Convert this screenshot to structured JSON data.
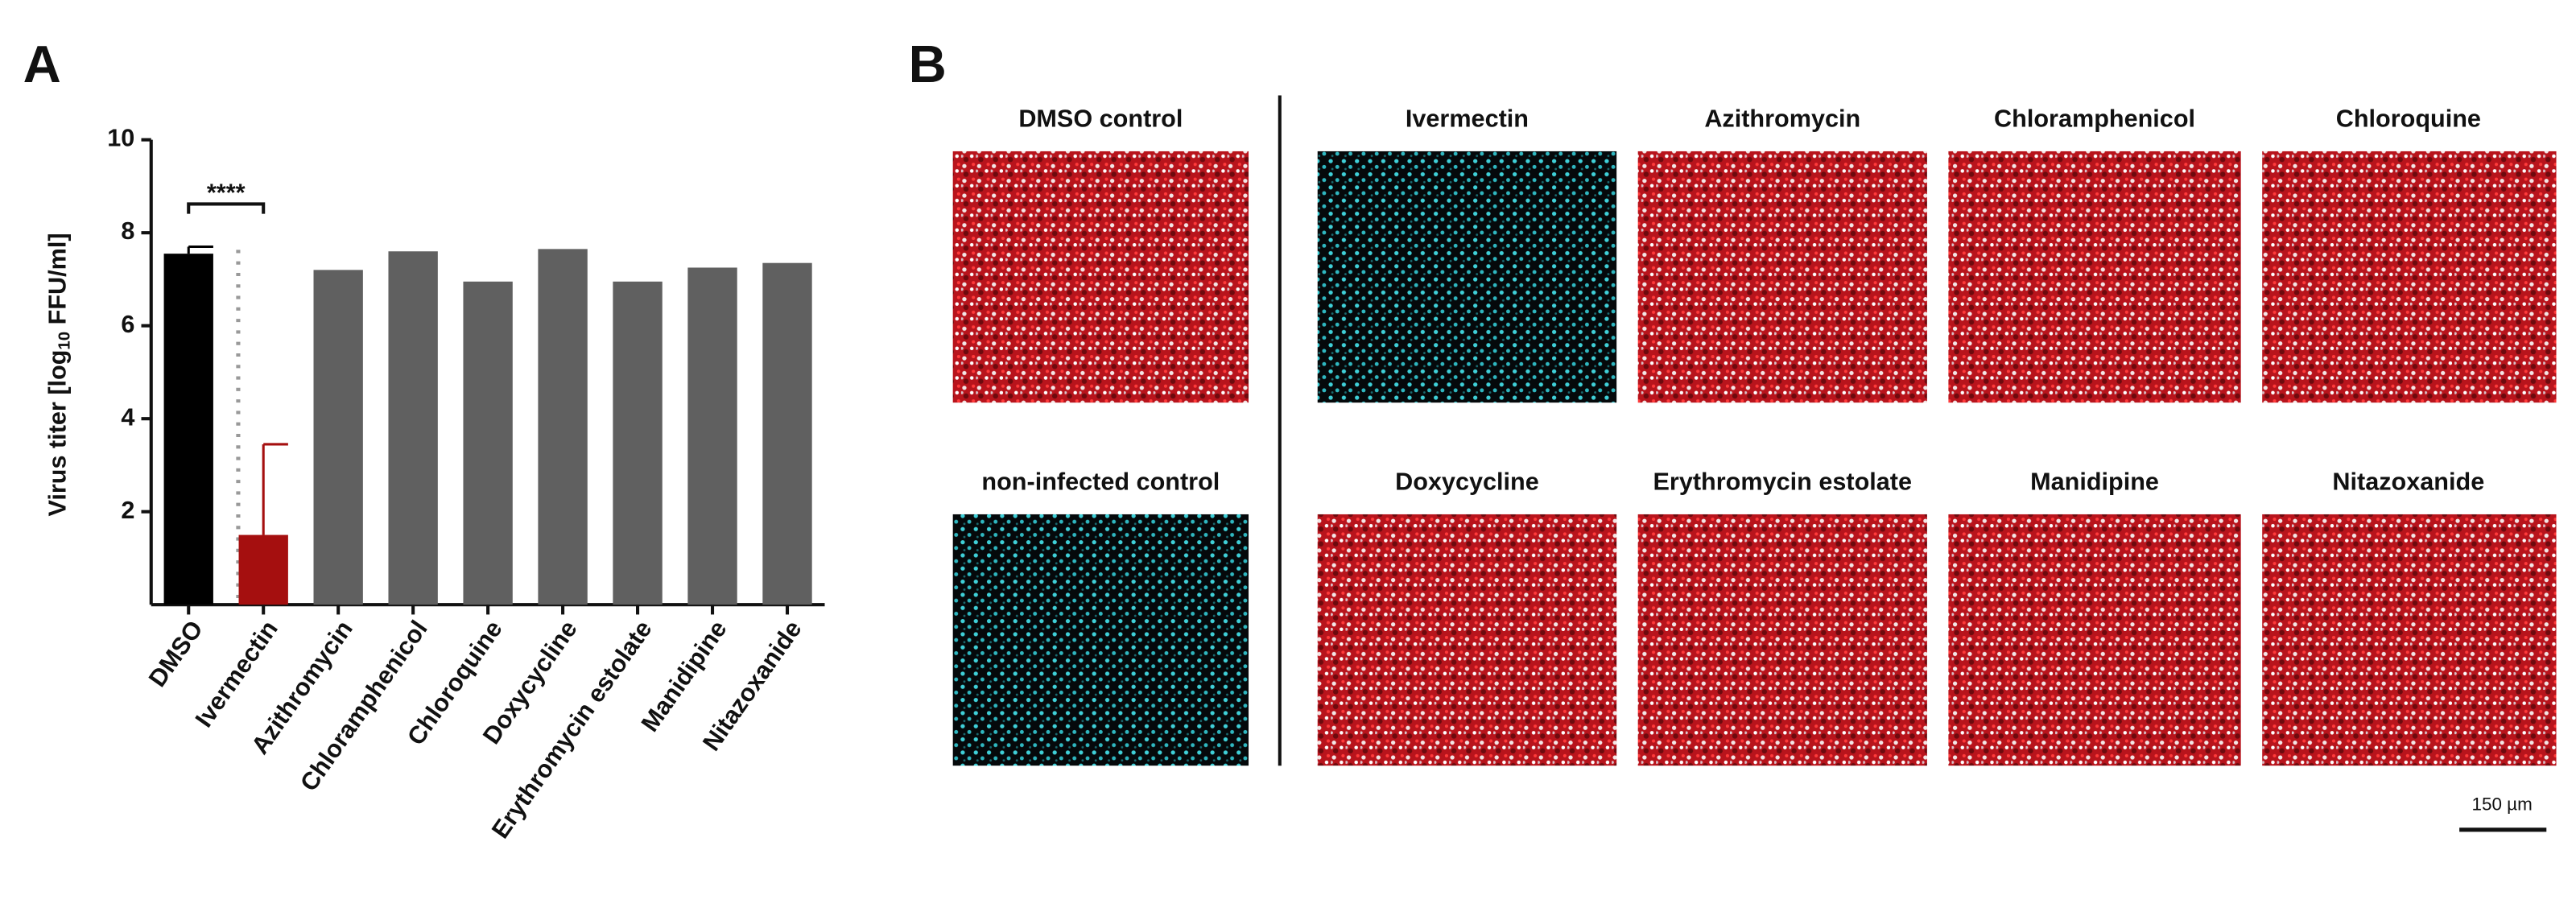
{
  "chart_data": {
    "type": "bar",
    "panel_label": "A",
    "ylabel_parts": [
      "Virus titer [log",
      "10",
      " FFU/ml]"
    ],
    "categories": [
      "DMSO",
      "Ivermectin",
      "Azithromycin",
      "Chloramphenicol",
      "Chloroquine",
      "Doxycycline",
      "Erythromycin estolate",
      "Manidipine",
      "Nitazoxanide"
    ],
    "values": [
      7.55,
      1.5,
      7.2,
      7.6,
      6.95,
      7.65,
      6.95,
      7.25,
      7.35
    ],
    "errors": [
      0.15,
      1.95,
      null,
      null,
      null,
      null,
      null,
      null,
      null
    ],
    "colors": [
      "#000000",
      "#a50f0f",
      "#606060",
      "#606060",
      "#606060",
      "#606060",
      "#606060",
      "#606060",
      "#606060"
    ],
    "ylim": [
      0,
      10
    ],
    "yticks": [
      2,
      4,
      6,
      8,
      10
    ],
    "annotation": "****"
  },
  "panel_b": {
    "label": "B",
    "images": [
      "DMSO control",
      "Ivermectin",
      "Azithromycin",
      "Chloramphenicol",
      "Chloroquine",
      "non-infected control",
      "Doxycycline",
      "Erythromycin estolate",
      "Manidipine",
      "Nitazoxanide"
    ],
    "scale_bar": "150 µm"
  }
}
